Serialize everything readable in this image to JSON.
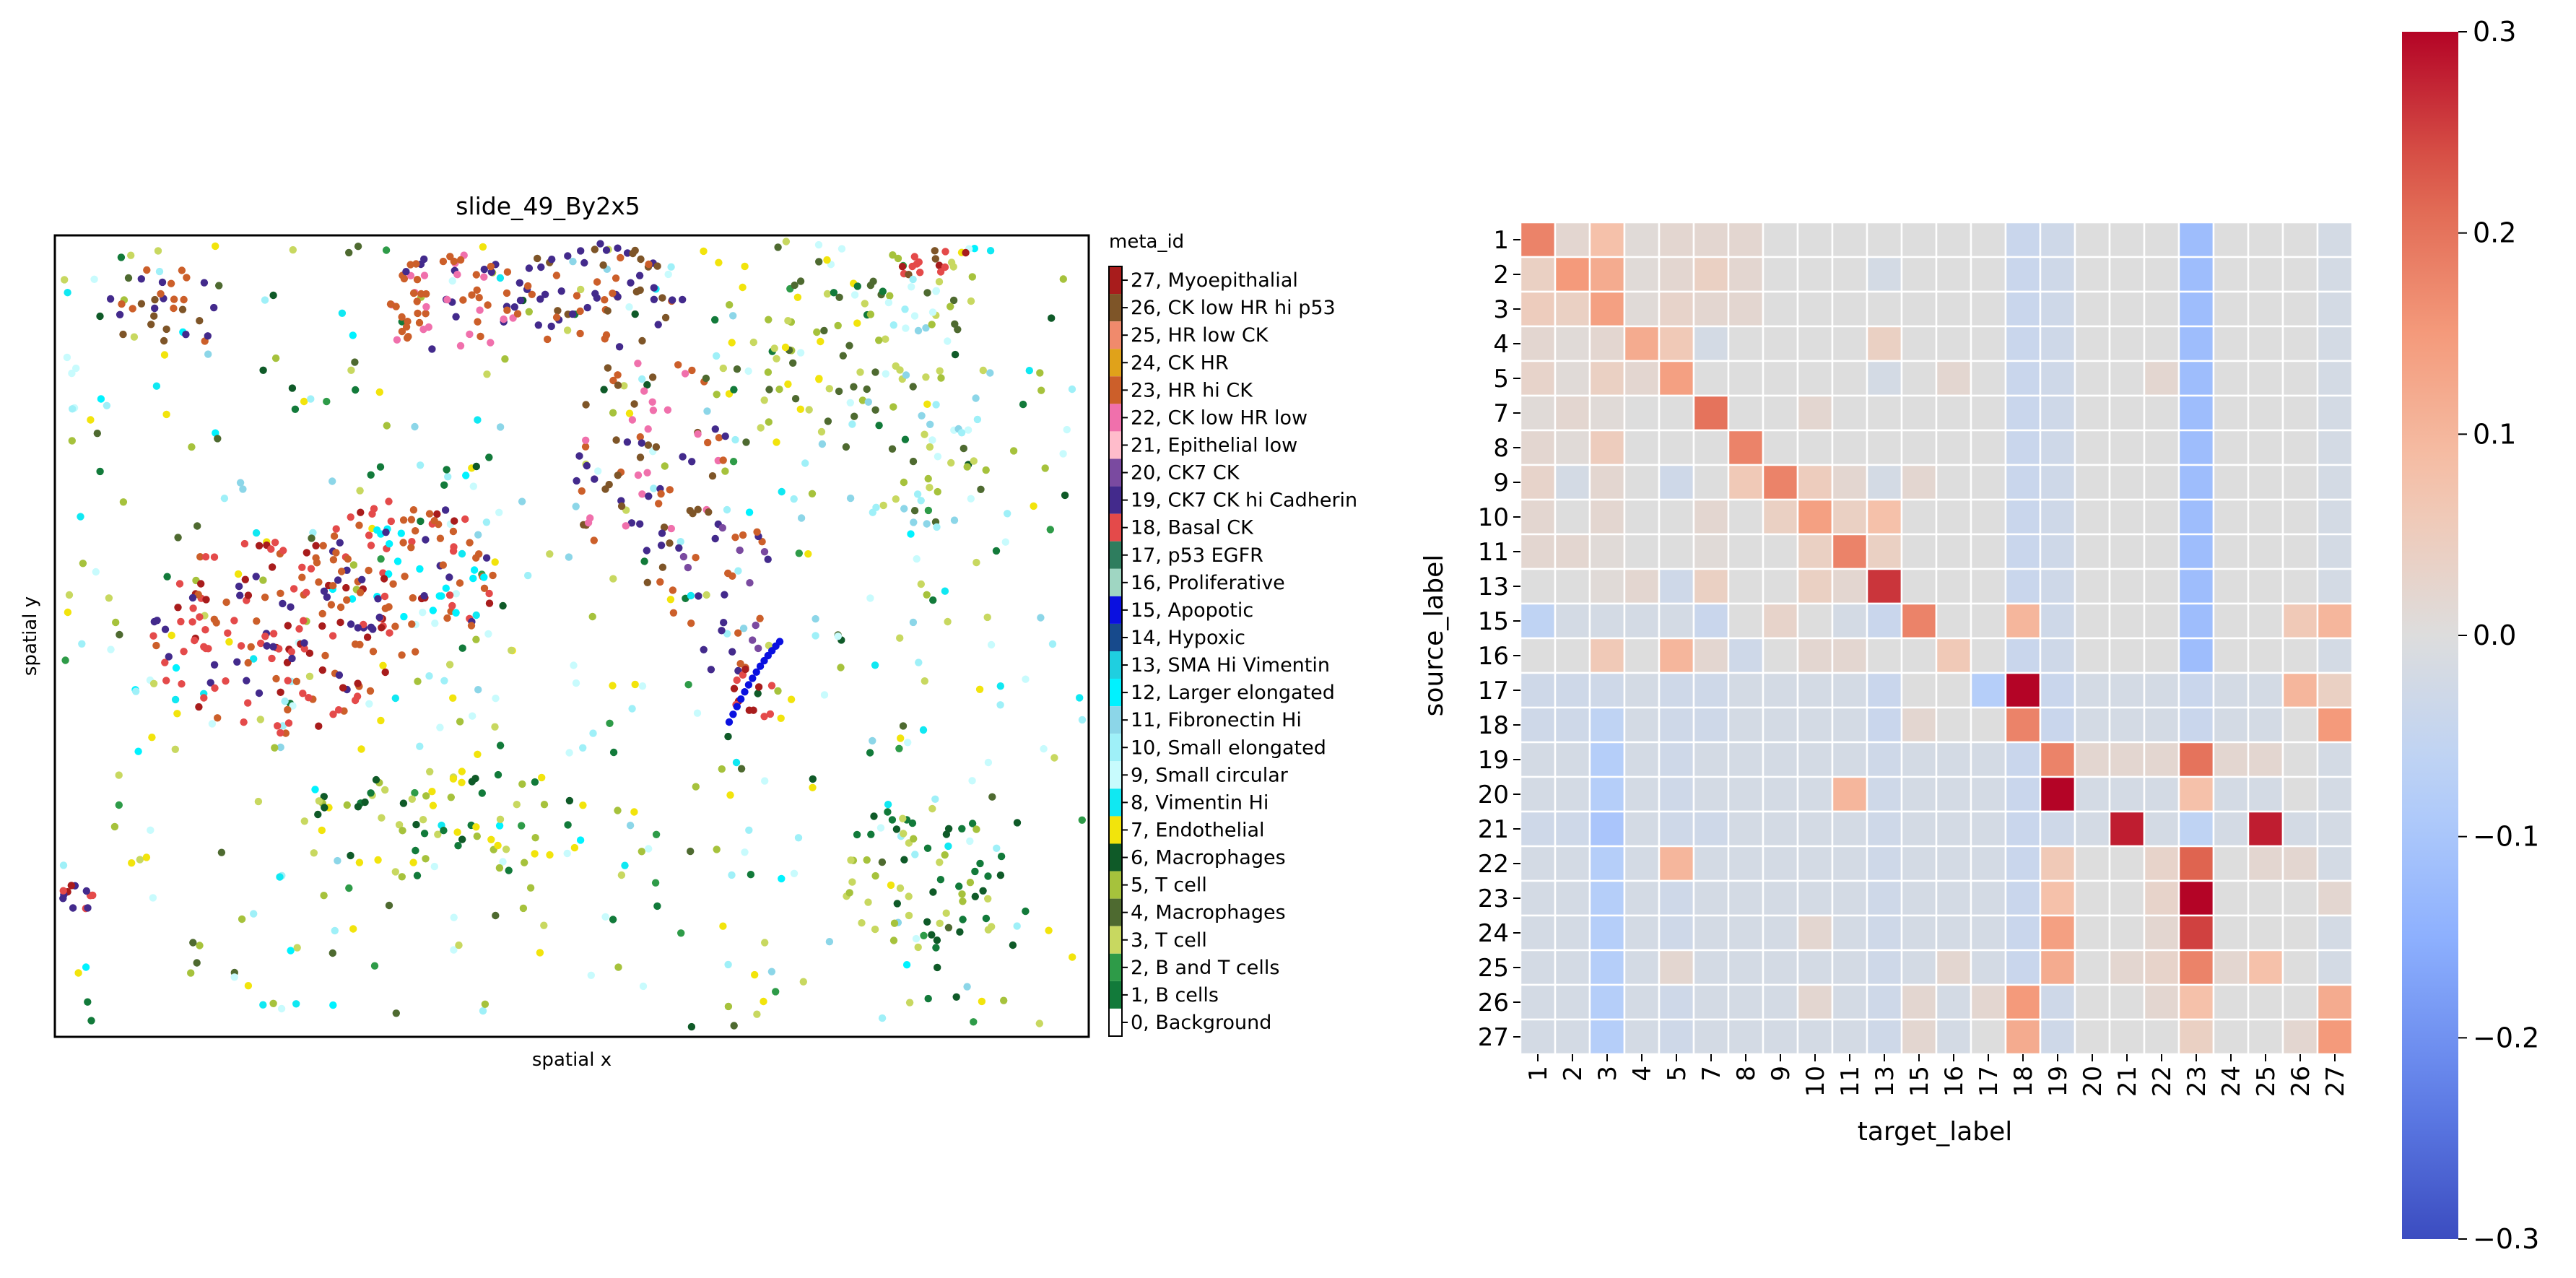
{
  "scatter": {
    "title": "slide_49_By2x5",
    "xlabel": "spatial x",
    "ylabel": "spatial y",
    "legend_title": "meta_id",
    "legend": [
      {
        "label": "27, Myoepithalial",
        "color": "#a81c1c"
      },
      {
        "label": "26, CK low HR hi p53",
        "color": "#7e5528"
      },
      {
        "label": "25, HR low CK",
        "color": "#f08a6c"
      },
      {
        "label": "24, CK HR",
        "color": "#e0a21a"
      },
      {
        "label": "23, HR hi CK",
        "color": "#cc5f2a"
      },
      {
        "label": "22, CK low HR low",
        "color": "#f070ac"
      },
      {
        "label": "21, Epithelial low",
        "color": "#ffbccb"
      },
      {
        "label": "20, CK7 CK",
        "color": "#7a4aa0"
      },
      {
        "label": "19, CK7 CK hi Cadherin",
        "color": "#432a8c"
      },
      {
        "label": "18, Basal CK",
        "color": "#e44a4a"
      },
      {
        "label": "17, p53 EGFR",
        "color": "#2e7d5e"
      },
      {
        "label": "16, Proliferative",
        "color": "#9fd6c2"
      },
      {
        "label": "15, Apopotic",
        "color": "#0a10e0"
      },
      {
        "label": "14, Hypoxic",
        "color": "#174a8c"
      },
      {
        "label": "13, SMA Hi Vimentin",
        "color": "#1fcfe0"
      },
      {
        "label": "12, Larger elongated",
        "color": "#00f2ff"
      },
      {
        "label": "11, Fibronectin Hi",
        "color": "#8cd6e8"
      },
      {
        "label": "10, Small elongated",
        "color": "#9ff0f8"
      },
      {
        "label": "9, Small circular",
        "color": "#c8fbfd"
      },
      {
        "label": "8, Vimentin Hi",
        "color": "#10e8f2"
      },
      {
        "label": "7, Endothelial",
        "color": "#f2e40c"
      },
      {
        "label": "6, Macrophages",
        "color": "#0f5a28"
      },
      {
        "label": "5, T cell",
        "color": "#a6c23c"
      },
      {
        "label": "4, Macrophages",
        "color": "#4e6a30"
      },
      {
        "label": "3, T cell",
        "color": "#c8d860"
      },
      {
        "label": "2, B and T cells",
        "color": "#2e9b48"
      },
      {
        "label": "1, B cells",
        "color": "#127a3a"
      },
      {
        "label": "0, Background",
        "color": "#ffffff"
      }
    ]
  },
  "chart_data": {
    "type": "heatmap",
    "xlabel": "target_label",
    "ylabel": "source_label",
    "row_labels": [
      "1",
      "2",
      "3",
      "4",
      "5",
      "7",
      "8",
      "9",
      "10",
      "11",
      "13",
      "15",
      "16",
      "17",
      "18",
      "19",
      "20",
      "21",
      "22",
      "23",
      "24",
      "25",
      "26",
      "27"
    ],
    "col_labels": [
      "1",
      "2",
      "3",
      "4",
      "5",
      "7",
      "8",
      "9",
      "10",
      "11",
      "13",
      "15",
      "16",
      "17",
      "18",
      "19",
      "20",
      "21",
      "22",
      "23",
      "24",
      "25",
      "26",
      "27"
    ],
    "colormap": "coolwarm",
    "vmin": -0.3,
    "vmax": 0.3,
    "colorbar_ticks": [
      "0.3",
      "0.2",
      "0.1",
      "0.0",
      "−0.1",
      "−0.2",
      "−0.3"
    ],
    "values": [
      [
        0.18,
        0.02,
        0.08,
        0.01,
        0.02,
        0.02,
        0.02,
        0.0,
        0.0,
        0.0,
        0.0,
        0.0,
        0.0,
        0.0,
        -0.04,
        -0.03,
        0.0,
        0.0,
        0.0,
        -0.12,
        0.0,
        0.0,
        0.0,
        -0.02
      ],
      [
        0.04,
        0.15,
        0.12,
        0.01,
        0.02,
        0.04,
        0.02,
        0.0,
        0.0,
        0.0,
        -0.02,
        0.0,
        0.0,
        0.0,
        -0.04,
        -0.03,
        0.0,
        0.0,
        0.0,
        -0.12,
        0.0,
        0.0,
        0.0,
        -0.02
      ],
      [
        0.05,
        0.04,
        0.14,
        0.01,
        0.03,
        0.02,
        0.02,
        0.0,
        0.0,
        0.0,
        0.0,
        0.0,
        0.0,
        0.0,
        -0.04,
        -0.03,
        0.0,
        0.0,
        0.0,
        -0.12,
        0.0,
        0.0,
        0.0,
        -0.02
      ],
      [
        0.02,
        0.01,
        0.02,
        0.12,
        0.06,
        -0.02,
        0.0,
        0.0,
        0.0,
        0.0,
        0.04,
        0.0,
        0.0,
        0.0,
        -0.04,
        -0.03,
        0.0,
        0.0,
        0.0,
        -0.12,
        0.0,
        0.0,
        0.0,
        -0.02
      ],
      [
        0.03,
        0.01,
        0.04,
        0.02,
        0.14,
        0.0,
        0.0,
        0.0,
        0.0,
        0.0,
        -0.02,
        0.0,
        0.02,
        0.0,
        -0.04,
        -0.03,
        0.0,
        0.0,
        0.02,
        -0.12,
        0.0,
        0.0,
        0.0,
        -0.02
      ],
      [
        0.01,
        0.02,
        0.01,
        0.0,
        0.0,
        0.2,
        0.0,
        0.0,
        0.02,
        0.0,
        0.0,
        0.0,
        0.0,
        0.0,
        -0.04,
        -0.03,
        0.0,
        0.0,
        0.0,
        -0.12,
        0.0,
        0.0,
        0.0,
        -0.02
      ],
      [
        0.02,
        0.01,
        0.05,
        0.0,
        0.0,
        0.0,
        0.18,
        0.0,
        0.0,
        0.0,
        0.0,
        0.0,
        0.0,
        0.0,
        -0.04,
        -0.03,
        0.0,
        0.0,
        0.0,
        -0.12,
        0.0,
        0.0,
        0.0,
        -0.02
      ],
      [
        0.03,
        -0.02,
        0.02,
        0.0,
        -0.03,
        0.0,
        0.06,
        0.18,
        0.05,
        0.02,
        -0.02,
        0.02,
        0.0,
        0.0,
        -0.04,
        -0.03,
        0.0,
        0.0,
        0.0,
        -0.12,
        0.0,
        0.0,
        0.0,
        -0.02
      ],
      [
        0.02,
        0.0,
        0.02,
        0.0,
        0.0,
        0.02,
        0.0,
        0.04,
        0.14,
        0.04,
        0.08,
        0.0,
        0.0,
        0.0,
        -0.04,
        -0.03,
        0.0,
        0.0,
        0.0,
        -0.12,
        0.0,
        0.0,
        0.0,
        -0.02
      ],
      [
        0.02,
        0.02,
        0.01,
        0.0,
        0.0,
        0.01,
        0.0,
        0.0,
        0.04,
        0.18,
        0.04,
        0.0,
        0.0,
        0.0,
        -0.04,
        -0.03,
        0.0,
        0.0,
        0.0,
        -0.12,
        0.0,
        0.0,
        0.0,
        -0.02
      ],
      [
        0.0,
        0.0,
        0.01,
        0.02,
        -0.03,
        0.04,
        0.0,
        0.0,
        0.04,
        0.02,
        0.26,
        0.0,
        0.0,
        0.0,
        -0.04,
        -0.03,
        0.0,
        0.0,
        0.0,
        -0.12,
        0.0,
        0.0,
        0.0,
        -0.02
      ],
      [
        -0.06,
        -0.02,
        -0.02,
        -0.02,
        -0.02,
        -0.04,
        0.0,
        0.03,
        0.0,
        -0.02,
        -0.04,
        0.18,
        0.0,
        0.0,
        0.1,
        -0.03,
        0.0,
        0.0,
        0.0,
        -0.12,
        0.0,
        0.0,
        0.06,
        0.1
      ],
      [
        0.0,
        0.0,
        0.06,
        0.0,
        0.1,
        0.02,
        -0.03,
        0.0,
        0.02,
        0.02,
        0.0,
        0.0,
        0.06,
        0.0,
        -0.04,
        -0.03,
        0.0,
        0.0,
        0.0,
        -0.12,
        0.0,
        0.0,
        0.0,
        -0.02
      ],
      [
        -0.03,
        -0.03,
        -0.03,
        -0.02,
        -0.03,
        -0.03,
        -0.02,
        -0.02,
        -0.02,
        -0.02,
        -0.04,
        0.0,
        0.0,
        -0.08,
        0.3,
        -0.04,
        -0.02,
        -0.02,
        -0.02,
        -0.04,
        -0.02,
        -0.02,
        0.1,
        0.04
      ],
      [
        -0.03,
        -0.03,
        -0.06,
        -0.02,
        -0.03,
        -0.03,
        -0.02,
        -0.02,
        -0.02,
        -0.02,
        -0.04,
        0.02,
        0.0,
        0.0,
        0.18,
        -0.04,
        -0.02,
        -0.02,
        -0.02,
        -0.04,
        -0.02,
        -0.02,
        0.0,
        0.15
      ],
      [
        -0.02,
        -0.02,
        -0.08,
        -0.02,
        -0.03,
        -0.02,
        -0.02,
        -0.02,
        -0.02,
        -0.02,
        -0.03,
        -0.02,
        -0.02,
        -0.02,
        -0.04,
        0.18,
        0.02,
        0.02,
        0.02,
        0.2,
        0.02,
        0.02,
        0.0,
        -0.02
      ],
      [
        -0.02,
        -0.02,
        -0.08,
        -0.02,
        -0.03,
        -0.02,
        -0.02,
        -0.02,
        -0.02,
        0.1,
        -0.03,
        -0.02,
        -0.02,
        -0.02,
        -0.04,
        0.3,
        -0.02,
        -0.02,
        -0.02,
        0.08,
        -0.02,
        -0.02,
        0.0,
        -0.02
      ],
      [
        -0.03,
        -0.03,
        -0.1,
        -0.02,
        -0.03,
        -0.03,
        -0.02,
        -0.02,
        -0.02,
        -0.02,
        -0.03,
        -0.02,
        -0.02,
        -0.02,
        -0.04,
        -0.03,
        -0.02,
        0.28,
        -0.02,
        -0.06,
        -0.02,
        0.28,
        -0.02,
        -0.02
      ],
      [
        -0.02,
        -0.02,
        -0.08,
        -0.02,
        0.1,
        -0.02,
        -0.02,
        -0.02,
        -0.02,
        -0.02,
        -0.03,
        -0.02,
        -0.02,
        -0.02,
        -0.04,
        0.06,
        0.0,
        0.0,
        0.03,
        0.22,
        0.0,
        0.02,
        0.02,
        -0.02
      ],
      [
        -0.02,
        -0.02,
        -0.08,
        -0.02,
        -0.03,
        -0.02,
        -0.02,
        -0.02,
        -0.02,
        -0.02,
        -0.03,
        -0.02,
        -0.02,
        -0.02,
        -0.04,
        0.08,
        0.0,
        0.0,
        0.03,
        0.3,
        0.0,
        0.0,
        0.0,
        0.02
      ],
      [
        -0.02,
        -0.02,
        -0.08,
        -0.02,
        -0.03,
        -0.02,
        -0.02,
        -0.02,
        0.02,
        -0.02,
        -0.03,
        -0.02,
        -0.02,
        -0.02,
        -0.04,
        0.14,
        0.0,
        0.0,
        0.02,
        0.25,
        0.0,
        0.0,
        0.0,
        -0.02
      ],
      [
        -0.02,
        -0.02,
        -0.08,
        -0.02,
        0.02,
        -0.02,
        -0.02,
        -0.02,
        -0.02,
        -0.02,
        -0.03,
        -0.02,
        0.02,
        -0.02,
        -0.04,
        0.12,
        0.0,
        0.02,
        0.03,
        0.18,
        0.02,
        0.08,
        0.0,
        -0.02
      ],
      [
        -0.02,
        -0.02,
        -0.08,
        -0.02,
        -0.03,
        -0.02,
        -0.02,
        -0.02,
        0.02,
        -0.02,
        -0.03,
        0.02,
        -0.02,
        0.02,
        0.15,
        -0.03,
        0.0,
        0.0,
        0.02,
        0.08,
        0.0,
        0.0,
        0.0,
        0.12
      ],
      [
        -0.02,
        -0.02,
        -0.08,
        -0.02,
        -0.03,
        -0.02,
        -0.02,
        -0.02,
        -0.02,
        -0.02,
        -0.03,
        0.02,
        -0.02,
        0.0,
        0.12,
        -0.03,
        0.0,
        0.0,
        0.0,
        0.04,
        0.0,
        0.0,
        0.02,
        0.15
      ]
    ]
  }
}
